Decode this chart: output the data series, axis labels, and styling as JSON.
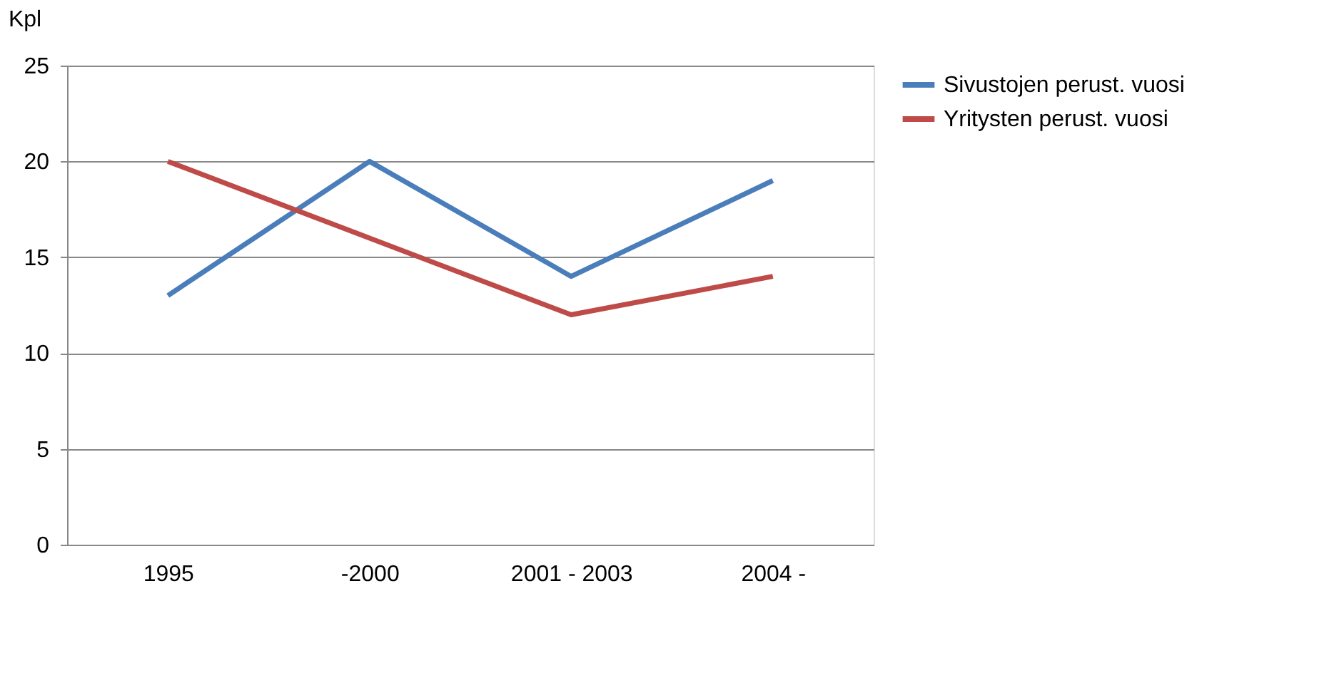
{
  "chart_data": {
    "type": "line",
    "ylabel": "Kpl",
    "categories": [
      "1995",
      "-2000",
      "2001 - 2003",
      "2004 -"
    ],
    "series": [
      {
        "name": "Sivustojen perust. vuosi",
        "color": "#4a7ebb",
        "values": [
          13,
          20,
          14,
          19
        ]
      },
      {
        "name": "Yritysten perust. vuosi",
        "color": "#be4b48",
        "values": [
          20,
          16,
          12,
          14
        ]
      }
    ],
    "ylim": [
      0,
      25
    ],
    "yticks": [
      0,
      5,
      10,
      15,
      20,
      25
    ],
    "grid": "y",
    "legend": "right",
    "marker": "none",
    "line_style": "solid"
  }
}
